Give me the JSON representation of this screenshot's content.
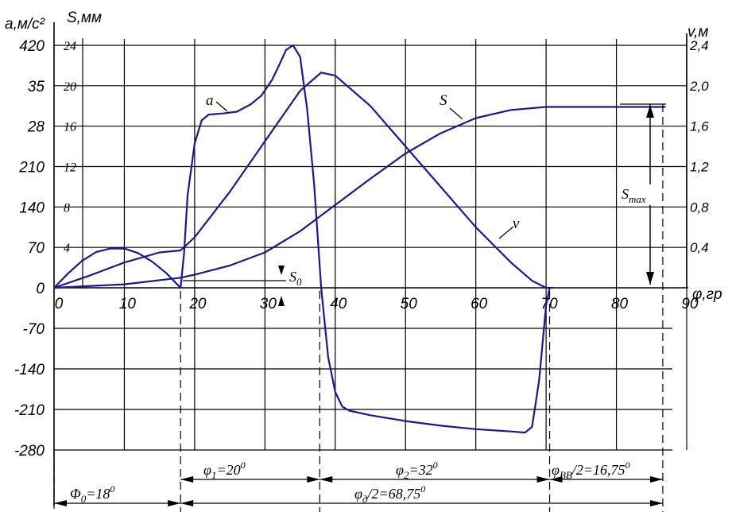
{
  "chart_data": {
    "type": "line",
    "title": "",
    "axes": {
      "x": {
        "label": "φ,гр",
        "ticks": [
          "0",
          "10",
          "20",
          "30",
          "40",
          "50",
          "60",
          "70",
          "80",
          "90"
        ],
        "range": [
          0,
          90
        ]
      },
      "y_left_a": {
        "label": "a,м/с²",
        "ticks": [
          "420",
          "35",
          "28",
          "210",
          "140",
          "70",
          "0",
          "-70",
          "-140",
          "-210",
          "-280"
        ],
        "range": [
          -280,
          420
        ]
      },
      "y_left_s": {
        "label": "S,мм",
        "ticks": [
          "24",
          "20",
          "16",
          "12",
          "8",
          "4"
        ],
        "range": [
          0,
          24
        ]
      },
      "y_right_v": {
        "label": "v,м",
        "ticks": [
          "2,4",
          "2,0",
          "1,6",
          "1,2",
          "0,8",
          "0,4"
        ],
        "range": [
          0,
          2.4
        ]
      }
    },
    "grid": true,
    "series": [
      {
        "name": "a",
        "color": "#1a1a8c",
        "axis": "a",
        "x": [
          0,
          2,
          4,
          6,
          8,
          10,
          12,
          14,
          16,
          18,
          18.5,
          19,
          20,
          21,
          22,
          24,
          26,
          28,
          29.5,
          31,
          32,
          33,
          34,
          35,
          36,
          37,
          38,
          39,
          40,
          41,
          42,
          45,
          50,
          55,
          60,
          65,
          67,
          68,
          69,
          70,
          70.5
        ],
        "y": [
          0,
          25,
          47,
          62,
          68,
          68,
          60,
          45,
          25,
          0,
          60,
          160,
          250,
          290,
          300,
          302,
          305,
          318,
          333,
          360,
          385,
          412,
          420,
          400,
          310,
          180,
          0,
          -120,
          -180,
          -205,
          -212,
          -220,
          -230,
          -238,
          -244,
          -248,
          -250,
          -240,
          -160,
          -30,
          0
        ]
      },
      {
        "name": "v",
        "color": "#1a1a8c",
        "axis": "v",
        "x": [
          0,
          5,
          10,
          15,
          18,
          20,
          25,
          30,
          35,
          38,
          40,
          45,
          50,
          55,
          60,
          65,
          68,
          70,
          71
        ],
        "y": [
          0,
          0.12,
          0.25,
          0.35,
          0.37,
          0.5,
          0.95,
          1.45,
          1.95,
          2.13,
          2.1,
          1.8,
          1.4,
          1.0,
          0.6,
          0.25,
          0.07,
          0,
          0
        ]
      },
      {
        "name": "S",
        "color": "#1a1a8c",
        "axis": "s",
        "x": [
          0,
          10,
          18,
          20,
          25,
          30,
          35,
          40,
          45,
          50,
          55,
          60,
          65,
          70,
          75,
          80,
          85,
          87
        ],
        "y": [
          0,
          0.35,
          1.0,
          1.3,
          2.2,
          3.5,
          5.6,
          8.2,
          10.8,
          13.3,
          15.3,
          16.8,
          17.6,
          17.9,
          17.9,
          17.9,
          17.9,
          17.9
        ]
      }
    ],
    "annotations": {
      "curve_a": "a",
      "curve_v": "v",
      "curve_s": "S",
      "s0": "S",
      "s0_sub": "0",
      "smax": "S",
      "smax_sub": "max",
      "phi0": "Φ",
      "phi0_sub": "0",
      "phi0_val": "=18",
      "phi0_sup": "0",
      "phi1": "φ",
      "phi1_sub": "1",
      "phi1_val": "=20",
      "phi1_sup": "0",
      "phi2": "φ",
      "phi2_sub": "2",
      "phi2_val": "=32",
      "phi2_sup": "0",
      "phiBB": "φ",
      "phiBB_sub": "ВВ",
      "phiBB_val": "/2=16,75",
      "phiBB_sup": "0",
      "phiD": "φ",
      "phiD_sub": "д",
      "phiD_val": "/2=68,75",
      "phiD_sup": "0"
    }
  }
}
